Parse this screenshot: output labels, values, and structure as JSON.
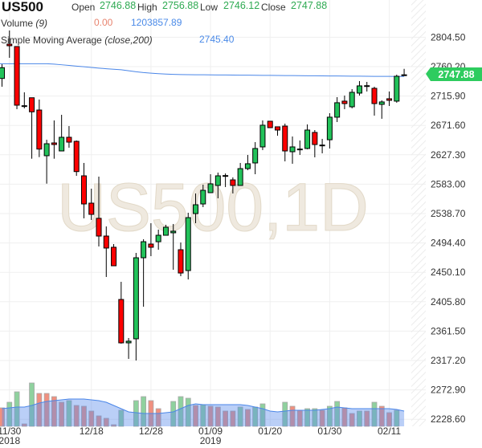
{
  "header": {
    "symbol": "US500",
    "open_label": "Open",
    "open": "2746.88",
    "high_label": "High",
    "high": "2756.88",
    "low_label": "Low",
    "low": "2746.12",
    "close_label": "Close",
    "close": "2747.88",
    "volume_label": "Volume",
    "volume_param": "(9)",
    "volume_value": "0.00",
    "volume_ma": "1203857.89",
    "sma_label": "Simple Moving Average",
    "sma_param": "(close,200)",
    "sma_value": "2745.40"
  },
  "watermark": "US500,1D",
  "price_tag": "2747.88",
  "colors": {
    "up": "#22c25a",
    "down": "#ff0000",
    "sma": "#4a86e8",
    "tag": "#2ecc5f"
  },
  "chart_data": {
    "type": "candlestick",
    "title": "US500, 1D",
    "ylim": [
      2200,
      2860
    ],
    "y_ticks": [
      "2804.50",
      "2760.20",
      "2715.90",
      "2671.60",
      "2627.30",
      "2583.00",
      "2538.70",
      "2494.40",
      "2450.10",
      "2405.80",
      "2361.50",
      "2317.20",
      "2272.90",
      "2228.60"
    ],
    "x_ticks": [
      {
        "index": 1,
        "label": "11/30",
        "sub": "2018"
      },
      {
        "index": 12,
        "label": "12/18",
        "sub": ""
      },
      {
        "index": 20,
        "label": "12/28",
        "sub": ""
      },
      {
        "index": 28,
        "label": "01/09",
        "sub": "2019"
      },
      {
        "index": 36,
        "label": "01/20",
        "sub": ""
      },
      {
        "index": 44,
        "label": "01/30",
        "sub": ""
      },
      {
        "index": 52,
        "label": "02/11",
        "sub": ""
      }
    ],
    "ohlc": [
      [
        2742.4,
        2763.8,
        2729.9,
        2758.6
      ],
      [
        2794.1,
        2814.7,
        2773.5,
        2791.7
      ],
      [
        2790.5,
        2791.0,
        2696.1,
        2702.1
      ],
      [
        2701.3,
        2721.5,
        2697.3,
        2701.0
      ],
      [
        2713.3,
        2713.3,
        2621.4,
        2692.1
      ],
      [
        2694.8,
        2710.6,
        2623.8,
        2635.9
      ],
      [
        2625.9,
        2650.0,
        2583.8,
        2644.0
      ],
      [
        2645.2,
        2679.1,
        2621.4,
        2642.8
      ],
      [
        2633.1,
        2687.6,
        2633.1,
        2653.7
      ],
      [
        2653.7,
        2670.6,
        2638.0,
        2646.4
      ],
      [
        2647.6,
        2648.9,
        2595.6,
        2602.0
      ],
      [
        2595.6,
        2615.0,
        2531.5,
        2553.2
      ],
      [
        2554.4,
        2576.2,
        2529.0,
        2537.5
      ],
      [
        2531.5,
        2594.4,
        2489.1,
        2504.8
      ],
      [
        2504.8,
        2519.3,
        2443.1,
        2486.7
      ],
      [
        2487.9,
        2492.7,
        2460.0,
        2460.0
      ],
      [
        2409.2,
        2435.8,
        2342.6,
        2343.8
      ],
      [
        2343.8,
        2351.1,
        2319.6,
        2346.3
      ],
      [
        2349.9,
        2479.4,
        2317.2,
        2472.1
      ],
      [
        2472.1,
        2500.0,
        2398.3,
        2496.3
      ],
      [
        2492.7,
        2524.2,
        2474.5,
        2487.9
      ],
      [
        2496.3,
        2514.5,
        2484.2,
        2506.0
      ],
      [
        2506.0,
        2521.8,
        2506.0,
        2518.1
      ],
      [
        2509.7,
        2523.0,
        2454.0,
        2512.1
      ],
      [
        2484.2,
        2495.1,
        2444.3,
        2449.1
      ],
      [
        2452.8,
        2539.9,
        2439.4,
        2532.6
      ],
      [
        2538.7,
        2569.0,
        2524.2,
        2552.0
      ],
      [
        2553.2,
        2582.3,
        2548.4,
        2573.8
      ],
      [
        2570.2,
        2598.0,
        2570.2,
        2583.5
      ],
      [
        2581.1,
        2600.5,
        2561.7,
        2595.6
      ],
      [
        2595.6,
        2599.2,
        2578.7,
        2596.0
      ],
      [
        2589.5,
        2593.2,
        2569.0,
        2581.1
      ],
      [
        2581.1,
        2615.0,
        2581.1,
        2606.5
      ],
      [
        2606.5,
        2627.1,
        2604.1,
        2613.8
      ],
      [
        2615.0,
        2646.4,
        2598.0,
        2636.8
      ],
      [
        2639.2,
        2679.1,
        2634.4,
        2671.9
      ],
      [
        2677.9,
        2677.9,
        2668.2,
        2668.2
      ],
      [
        2669.5,
        2669.5,
        2656.1,
        2664.6
      ],
      [
        2670.6,
        2674.3,
        2617.4,
        2633.1
      ],
      [
        2631.9,
        2654.9,
        2613.8,
        2639.2
      ],
      [
        2635.6,
        2648.9,
        2627.1,
        2636.0
      ],
      [
        2636.8,
        2673.1,
        2635.6,
        2664.6
      ],
      [
        2661.0,
        2664.6,
        2623.5,
        2642.8
      ],
      [
        2641.6,
        2651.3,
        2629.5,
        2642.0
      ],
      [
        2650.0,
        2690.0,
        2636.8,
        2684.0
      ],
      [
        2684.0,
        2714.2,
        2676.7,
        2705.8
      ],
      [
        2708.2,
        2716.6,
        2696.1,
        2704.5
      ],
      [
        2699.7,
        2726.3,
        2697.3,
        2721.5
      ],
      [
        2720.3,
        2738.4,
        2716.6,
        2731.2
      ],
      [
        2731.2,
        2737.2,
        2722.7,
        2731.5
      ],
      [
        2727.5,
        2729.9,
        2686.4,
        2704.5
      ],
      [
        2703.3,
        2709.4,
        2681.6,
        2707.0
      ],
      [
        2711.8,
        2722.7,
        2700.9,
        2709.4
      ],
      [
        2708.2,
        2748.1,
        2705.8,
        2745.7
      ],
      [
        2746.88,
        2756.88,
        2746.12,
        2747.88
      ]
    ],
    "sma200": [
      2764.6,
      2764.6,
      2764.6,
      2764.6,
      2764.6,
      2764.6,
      2764.6,
      2764.0,
      2763.0,
      2762.0,
      2761.0,
      2760.0,
      2759.0,
      2758.0,
      2757.0,
      2756.2,
      2755.5,
      2754.0,
      2752.5,
      2751.3,
      2750.4,
      2749.6,
      2749.0,
      2748.6,
      2748.3,
      2748.1,
      2748.0,
      2747.9,
      2747.8,
      2747.7,
      2747.6,
      2747.5,
      2747.4,
      2747.3,
      2747.2,
      2747.1,
      2747.0,
      2746.9,
      2746.8,
      2746.7,
      2746.6,
      2746.5,
      2746.4,
      2746.3,
      2746.2,
      2746.1,
      2746.0,
      2745.9,
      2745.8,
      2745.7,
      2745.6,
      2745.5,
      2745.5,
      2745.4,
      2745.4
    ],
    "volume_relative": [
      23,
      30,
      43,
      3,
      54,
      41,
      41,
      37,
      30,
      32,
      26,
      25,
      19,
      13,
      10,
      2,
      20,
      0,
      32,
      37,
      32,
      22,
      0,
      31,
      37,
      35,
      26,
      27,
      25,
      24,
      19,
      19,
      24,
      21,
      24,
      28,
      0,
      0,
      30,
      25,
      20,
      22,
      22,
      20,
      25,
      31,
      23,
      16,
      19,
      19,
      30,
      25,
      17,
      20,
      0
    ],
    "volume_direction": [
      "down",
      "up",
      "up",
      "down",
      "up",
      "down",
      "down",
      "down",
      "down",
      "up",
      "down",
      "down",
      "down",
      "down",
      "down",
      "down",
      "up",
      "up",
      "up",
      "up",
      "down",
      "down",
      "up",
      "up",
      "up",
      "up",
      "down",
      "up",
      "down",
      "down",
      "down",
      "down",
      "up",
      "down",
      "up",
      "up",
      "up",
      "up",
      "up",
      "down",
      "down",
      "up",
      "up",
      "down",
      "up",
      "up",
      "down",
      "down",
      "up",
      "down",
      "up",
      "down",
      "down",
      "up",
      "up"
    ],
    "volume_ma_relative": [
      22,
      23,
      24,
      24,
      26,
      29,
      31,
      32,
      33,
      34,
      34,
      34,
      33,
      32,
      30,
      26,
      22,
      18,
      17,
      16,
      16,
      16,
      17,
      18,
      22,
      26,
      28,
      27,
      27,
      27,
      27,
      27,
      27,
      26,
      24,
      22,
      19,
      18,
      19,
      20,
      20,
      20,
      20,
      21,
      22,
      24,
      23,
      22,
      22,
      22,
      22,
      22,
      22,
      21,
      19
    ]
  }
}
